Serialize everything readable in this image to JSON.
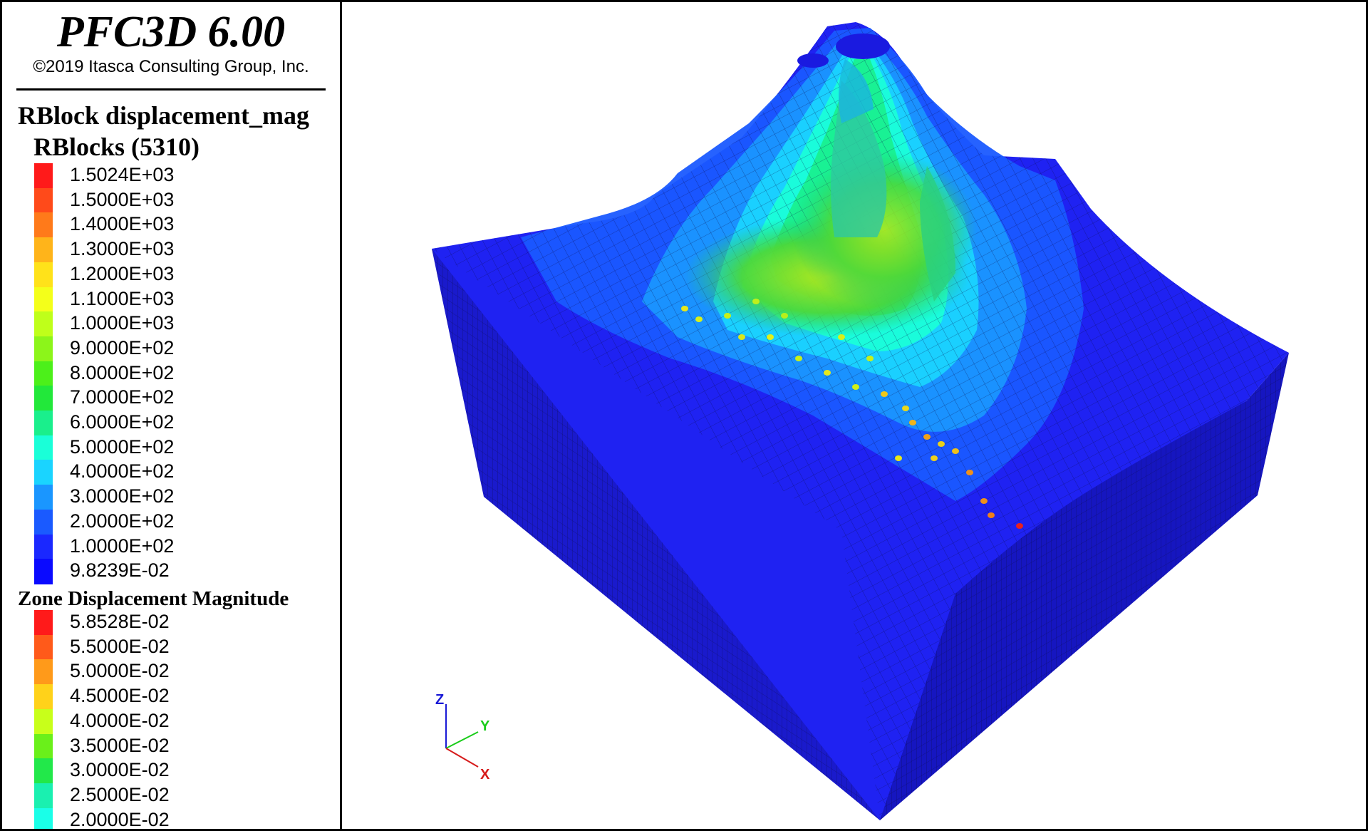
{
  "app": {
    "title": "PFC3D 6.00",
    "copyright": "©2019 Itasca Consulting Group, Inc."
  },
  "rblock_legend": {
    "title": "RBlock displacement_mag",
    "subtitle": "RBlocks (5310)",
    "entries": [
      {
        "label": "1.5024E+03",
        "color": "#ff1a1a"
      },
      {
        "label": "1.5000E+03",
        "color": "#ff4a1a"
      },
      {
        "label": "1.4000E+03",
        "color": "#ff7a1a"
      },
      {
        "label": "1.3000E+03",
        "color": "#ffb41a"
      },
      {
        "label": "1.2000E+03",
        "color": "#ffe21a"
      },
      {
        "label": "1.1000E+03",
        "color": "#f4ff1a"
      },
      {
        "label": "1.0000E+03",
        "color": "#bfff1a"
      },
      {
        "label": "9.0000E+02",
        "color": "#8cf51a"
      },
      {
        "label": "8.0000E+02",
        "color": "#4cf01a"
      },
      {
        "label": "7.0000E+02",
        "color": "#22e83a"
      },
      {
        "label": "6.0000E+02",
        "color": "#1aef8c"
      },
      {
        "label": "5.0000E+02",
        "color": "#1affd8"
      },
      {
        "label": "4.0000E+02",
        "color": "#1ad4ff"
      },
      {
        "label": "3.0000E+02",
        "color": "#1a96ff"
      },
      {
        "label": "2.0000E+02",
        "color": "#1a5aff"
      },
      {
        "label": "1.0000E+02",
        "color": "#1a28ff"
      },
      {
        "label": "9.8239E-02",
        "color": "#0a0aff"
      }
    ]
  },
  "zone_legend": {
    "title": "Zone Displacement Magnitude",
    "entries": [
      {
        "label": "5.8528E-02",
        "color": "#ff1a1a"
      },
      {
        "label": "5.5000E-02",
        "color": "#ff5a1a"
      },
      {
        "label": "5.0000E-02",
        "color": "#ff9a1a"
      },
      {
        "label": "4.5000E-02",
        "color": "#ffd21a"
      },
      {
        "label": "4.0000E-02",
        "color": "#c8ff1a"
      },
      {
        "label": "3.5000E-02",
        "color": "#6af01a"
      },
      {
        "label": "3.0000E-02",
        "color": "#22e84a"
      },
      {
        "label": "2.5000E-02",
        "color": "#1af0b0"
      },
      {
        "label": "2.0000E-02",
        "color": "#1affe8"
      }
    ]
  },
  "axes": {
    "z": {
      "label": "Z",
      "color": "#1a1ad6"
    },
    "y": {
      "label": "Y",
      "color": "#1acc1a"
    },
    "x": {
      "label": "X",
      "color": "#d61a1a"
    }
  },
  "model_colors": {
    "box_front": "#1f1fe6",
    "box_side": "#1212b4",
    "box_bottom": "#0a0a8c",
    "surface_low": "#1a2cff",
    "contour_1": "#1a5aff",
    "contour_2": "#1a96ff",
    "contour_3": "#1ad4ff",
    "contour_4": "#1affd8",
    "contour_5": "#1aef8c",
    "mesh": "#0a0a46"
  }
}
